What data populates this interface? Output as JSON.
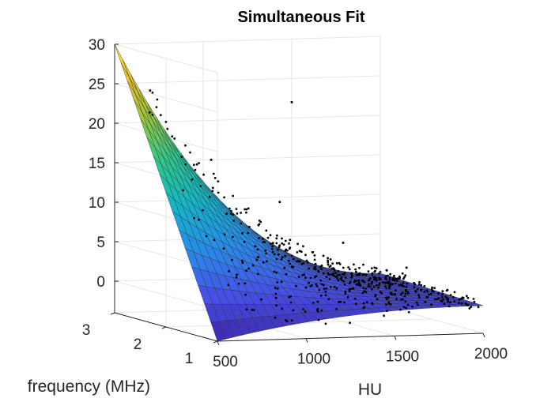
{
  "chart_data": {
    "type": "surface",
    "title": "Simultaneous Fit",
    "xlabel": "HU",
    "ylabel": "frequency (MHz)",
    "zlabel": "",
    "xlim": [
      500,
      2000
    ],
    "ylim": [
      1,
      3
    ],
    "zlim": [
      -4,
      30
    ],
    "xticks": [
      "500",
      "1000",
      "1500",
      "2000"
    ],
    "yticks": [
      "1",
      "2",
      "3"
    ],
    "zticks": [
      "0",
      "5",
      "10",
      "15",
      "20",
      "25",
      "30"
    ],
    "grid": true,
    "colormap": "parula",
    "surface_corners": {
      "HU500_f3": 30,
      "HU500_f1": -4,
      "HU2000_f3": 0,
      "HU2000_f1": -0.5
    },
    "scatter_series": {
      "name": "",
      "color": "#000000",
      "note_points": [
        {
          "HU": 700,
          "f": 3,
          "z": 24
        },
        {
          "HU": 1500,
          "f": 3,
          "z": 22
        },
        {
          "HU": 900,
          "f": 2.5,
          "z": 16
        },
        {
          "HU": 1200,
          "f": 2.2,
          "z": 11
        },
        {
          "HU": 1500,
          "f": 2,
          "z": 6
        },
        {
          "HU": 1800,
          "f": 1.8,
          "z": 3
        }
      ]
    }
  }
}
